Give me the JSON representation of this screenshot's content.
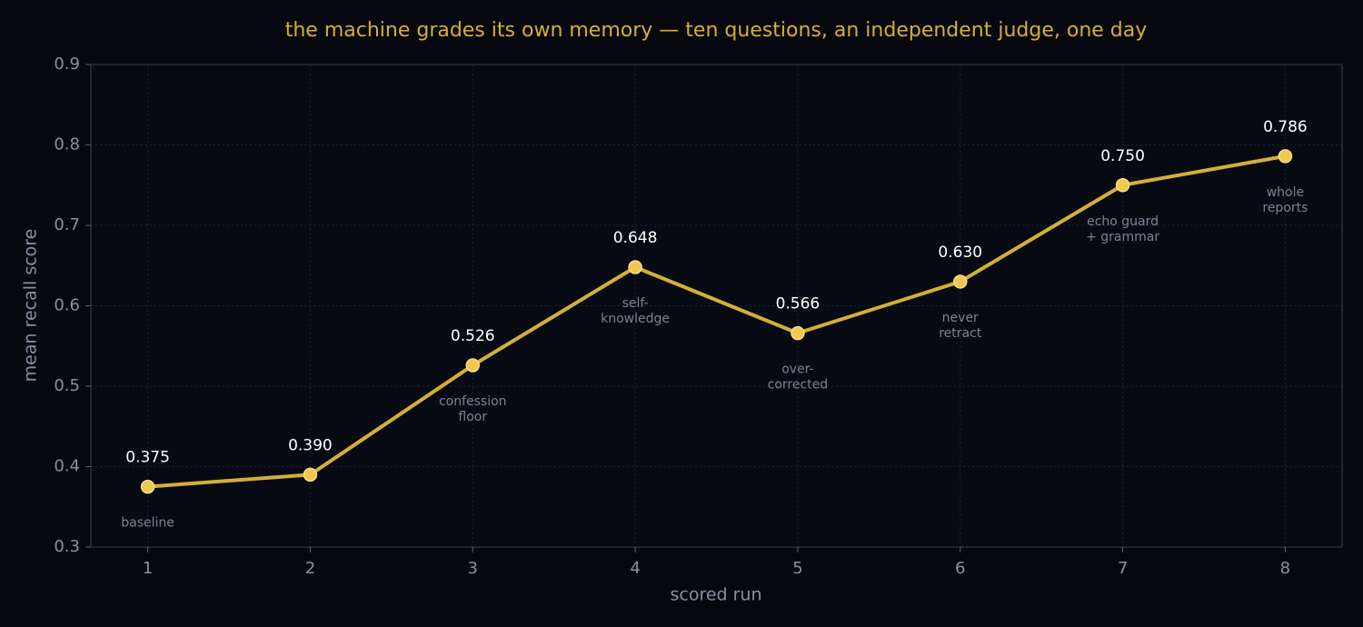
{
  "chart_data": {
    "type": "line",
    "title": "the machine grades its own memory — ten questions, an independent judge, one day",
    "xlabel": "scored run",
    "ylabel": "mean recall score",
    "x": [
      1,
      2,
      3,
      4,
      5,
      6,
      7,
      8
    ],
    "series": [
      {
        "color": "#d4af37",
        "values": [
          0.375,
          0.39,
          0.526,
          0.648,
          0.566,
          0.63,
          0.75,
          0.786
        ],
        "value_labels": [
          "0.375",
          "0.390",
          "0.526",
          "0.648",
          "0.566",
          "0.630",
          "0.750",
          "0.786"
        ],
        "notes": [
          [
            "baseline"
          ],
          [],
          [
            "confession",
            "floor"
          ],
          [
            "self-",
            "knowledge"
          ],
          [
            "over-",
            "corrected"
          ],
          [
            "never",
            "retract"
          ],
          [
            "echo guard",
            "+ grammar"
          ],
          [
            "whole",
            "reports"
          ]
        ]
      }
    ],
    "xlim": [
      0.65,
      8.35
    ],
    "ylim": [
      0.3,
      0.9
    ],
    "xticks": [
      1,
      2,
      3,
      4,
      5,
      6,
      7,
      8
    ],
    "yticks": [
      0.3,
      0.4,
      0.5,
      0.6,
      0.7,
      0.8,
      0.9
    ],
    "grid": true
  }
}
